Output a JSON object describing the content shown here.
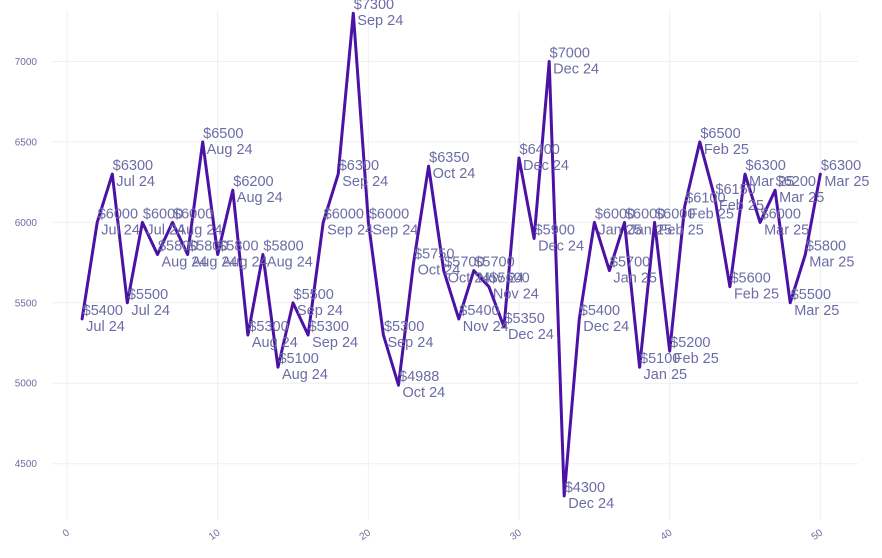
{
  "chart_data": {
    "type": "line",
    "title": "",
    "xlabel": "",
    "ylabel": "",
    "xlim": [
      -1,
      52.5
    ],
    "ylim": [
      4150,
      7320
    ],
    "x_ticks": [
      0,
      10,
      20,
      30,
      40,
      50
    ],
    "y_ticks": [
      4500,
      5000,
      5500,
      6000,
      6500,
      7000
    ],
    "grid": true,
    "line_color": "#4b12a5",
    "x": [
      1,
      2,
      3,
      4,
      5,
      6,
      7,
      8,
      9,
      10,
      11,
      12,
      13,
      14,
      15,
      16,
      17,
      18,
      19,
      20,
      21,
      22,
      23,
      24,
      25,
      26,
      27,
      28,
      29,
      30,
      31,
      32,
      33,
      34,
      35,
      36,
      37,
      38,
      39,
      40,
      41,
      42,
      43,
      44,
      45,
      46,
      47,
      48,
      49,
      50
    ],
    "values": [
      5400,
      6000,
      6300,
      5500,
      6000,
      5800,
      6000,
      5800,
      6500,
      5800,
      6200,
      5300,
      5800,
      5100,
      5500,
      5300,
      6000,
      6300,
      7300,
      6000,
      5300,
      4988,
      5750,
      6350,
      5700,
      5400,
      5700,
      5600,
      5350,
      6400,
      5900,
      7000,
      4300,
      5400,
      6000,
      5700,
      6000,
      5100,
      6000,
      5200,
      6100,
      6500,
      6150,
      5600,
      6300,
      6000,
      6200,
      5500,
      5800,
      6300
    ],
    "data_labels": [
      [
        "$5400",
        "Jul 24"
      ],
      [
        "$6000",
        "Jul 24"
      ],
      [
        "$6300",
        "Jul 24"
      ],
      [
        "$5500",
        "Jul 24"
      ],
      [
        "$6000",
        "Jul 24"
      ],
      [
        "$5800",
        "Aug 24"
      ],
      [
        "$6000",
        "Aug 24"
      ],
      [
        "$5800",
        "Aug 24"
      ],
      [
        "$6500",
        "Aug 24"
      ],
      [
        "$5800",
        "Aug 24"
      ],
      [
        "$6200",
        "Aug 24"
      ],
      [
        "$5300",
        "Aug 24"
      ],
      [
        "$5800",
        "Aug 24"
      ],
      [
        "$5100",
        "Aug 24"
      ],
      [
        "$5500",
        "Sep 24"
      ],
      [
        "$5300",
        "Sep 24"
      ],
      [
        "$6000",
        "Sep 24"
      ],
      [
        "$6300",
        "Sep 24"
      ],
      [
        "$7300",
        "Sep 24"
      ],
      [
        "$6000",
        "Sep 24"
      ],
      [
        "$5300",
        "Sep 24"
      ],
      [
        "$4988",
        "Oct 24"
      ],
      [
        "$5750",
        "Oct 24"
      ],
      [
        "$6350",
        "Oct 24"
      ],
      [
        "$5700",
        "Oct 24"
      ],
      [
        "$5400",
        "Nov 24"
      ],
      [
        "$5700",
        "Nov 24"
      ],
      [
        "$5600",
        "Nov 24"
      ],
      [
        "$5350",
        "Dec 24"
      ],
      [
        "$6400",
        "Dec 24"
      ],
      [
        "$5900",
        "Dec 24"
      ],
      [
        "$7000",
        "Dec 24"
      ],
      [
        "$4300",
        "Dec 24"
      ],
      [
        "$5400",
        "Dec 24"
      ],
      [
        "$6000",
        "Jan 25"
      ],
      [
        "$5700",
        "Jan 25"
      ],
      [
        "$6000",
        "Jan 25"
      ],
      [
        "$5100",
        "Jan 25"
      ],
      [
        "$6000",
        "Feb 25"
      ],
      [
        "$5200",
        "Feb 25"
      ],
      [
        "$6100",
        "Feb 25"
      ],
      [
        "$6500",
        "Feb 25"
      ],
      [
        "$6150",
        "Feb 25"
      ],
      [
        "$5600",
        "Feb 25"
      ],
      [
        "$6300",
        "Mar 25"
      ],
      [
        "$6000",
        "Mar 25"
      ],
      [
        "$6200",
        "Mar 25"
      ],
      [
        "$5500",
        "Mar 25"
      ],
      [
        "$5800",
        "Mar 25"
      ],
      [
        "$6300",
        "Mar 25"
      ]
    ]
  }
}
